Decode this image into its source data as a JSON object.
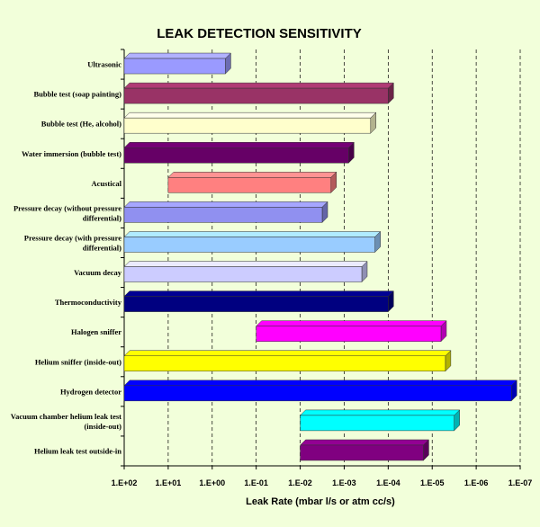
{
  "chart_data": {
    "type": "bar",
    "orientation": "horizontal",
    "style": "3d-floating-range",
    "title": "LEAK DETECTION SENSITIVITY",
    "xlabel": "Leak Rate (mbar l/s or atm cc/s)",
    "ylabel": "",
    "x_scale": "log-reversed",
    "xlim_exponent": [
      2,
      -7
    ],
    "xticks": [
      "1.E+02",
      "1.E+01",
      "1.E+00",
      "1.E-01",
      "1.E-02",
      "1.E-03",
      "1.E-04",
      "1.E-05",
      "1.E-06",
      "1.E-07"
    ],
    "grid": "vertical-dashed",
    "legend": "none",
    "categories": [
      "Ultrasonic",
      "Bubble test (soap painting)",
      "Bubble test (He, alcohol)",
      "Water immersion (bubble test)",
      "Acustical",
      "Pressure decay (without pressure differential)",
      "Pressure decay (with pressure differential)",
      "Vacuum decay",
      "Thermoconductivity",
      "Halogen sniffer",
      "Helium sniffer (inside-out)",
      "Hydrogen detector",
      "Vacuum chamber helium leak test (inside-out)",
      "Helium leak test outside-in"
    ],
    "category_lines": [
      [
        "Ultrasonic"
      ],
      [
        "Bubble test (soap painting)"
      ],
      [
        "Bubble test (He, alcohol)"
      ],
      [
        "Water immersion (bubble test)"
      ],
      [
        "Acustical"
      ],
      [
        "Pressure decay (without pressure",
        "differential)"
      ],
      [
        "Pressure decay (with pressure",
        "differential)"
      ],
      [
        "Vacuum decay"
      ],
      [
        "Thermoconductivity"
      ],
      [
        "Halogen sniffer"
      ],
      [
        "Helium sniffer (inside-out)"
      ],
      [
        "Hydrogen detector"
      ],
      [
        "Vacuum chamber helium leak test",
        "(inside-out)"
      ],
      [
        "Helium leak test outside-in"
      ]
    ],
    "ranges_exponent": [
      [
        2,
        -0.3
      ],
      [
        2,
        -4.0
      ],
      [
        2,
        -3.6
      ],
      [
        2,
        -3.1
      ],
      [
        1,
        -2.7
      ],
      [
        2,
        -2.5
      ],
      [
        2,
        -3.7
      ],
      [
        2,
        -3.4
      ],
      [
        2,
        -4.0
      ],
      [
        -1,
        -5.2
      ],
      [
        2,
        -5.3
      ],
      [
        2,
        -6.8
      ],
      [
        -2,
        -5.5
      ],
      [
        -2,
        -4.8
      ]
    ],
    "colors": [
      "#9a9aff",
      "#993366",
      "#ffffcc",
      "#660066",
      "#ff8080",
      "#9090f0",
      "#99ccff",
      "#ccccff",
      "#000080",
      "#ff00ff",
      "#ffff00",
      "#0000ff",
      "#00ffff",
      "#800080"
    ]
  }
}
